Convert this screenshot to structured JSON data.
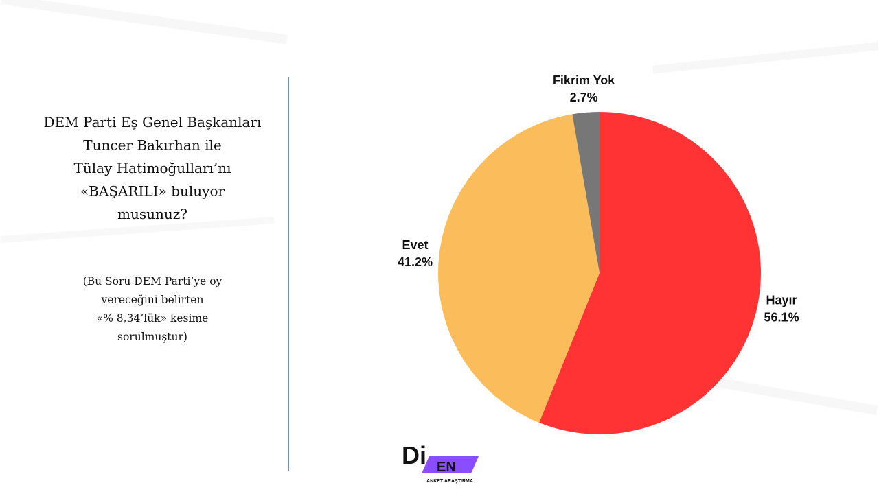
{
  "question": [
    "DEM Parti Eş Genel Başkanları",
    "Tuncer Bakırhan ile",
    "Tülay Hatimoğulları’nı",
    "«BAŞARILI» buluyor",
    "musunuz?"
  ],
  "note": [
    "(Bu Soru DEM Parti’ye oy",
    "vereceğini belirten",
    "«% 8,34’lük» kesime",
    "sorulmuştur)"
  ],
  "chart_data": {
    "type": "pie",
    "categories": [
      "Hayır",
      "Evet",
      "Fikrim Yok"
    ],
    "values": [
      56.1,
      41.2,
      2.7
    ],
    "value_labels": [
      "56.1%",
      "41.2%",
      "2.7%"
    ],
    "colors": [
      "#ff3333",
      "#fbbd5b",
      "#777777"
    ]
  },
  "logo": {
    "mark": "Di",
    "badge": "EN",
    "subtitle": "ANKET ARAŞTIRMA"
  }
}
